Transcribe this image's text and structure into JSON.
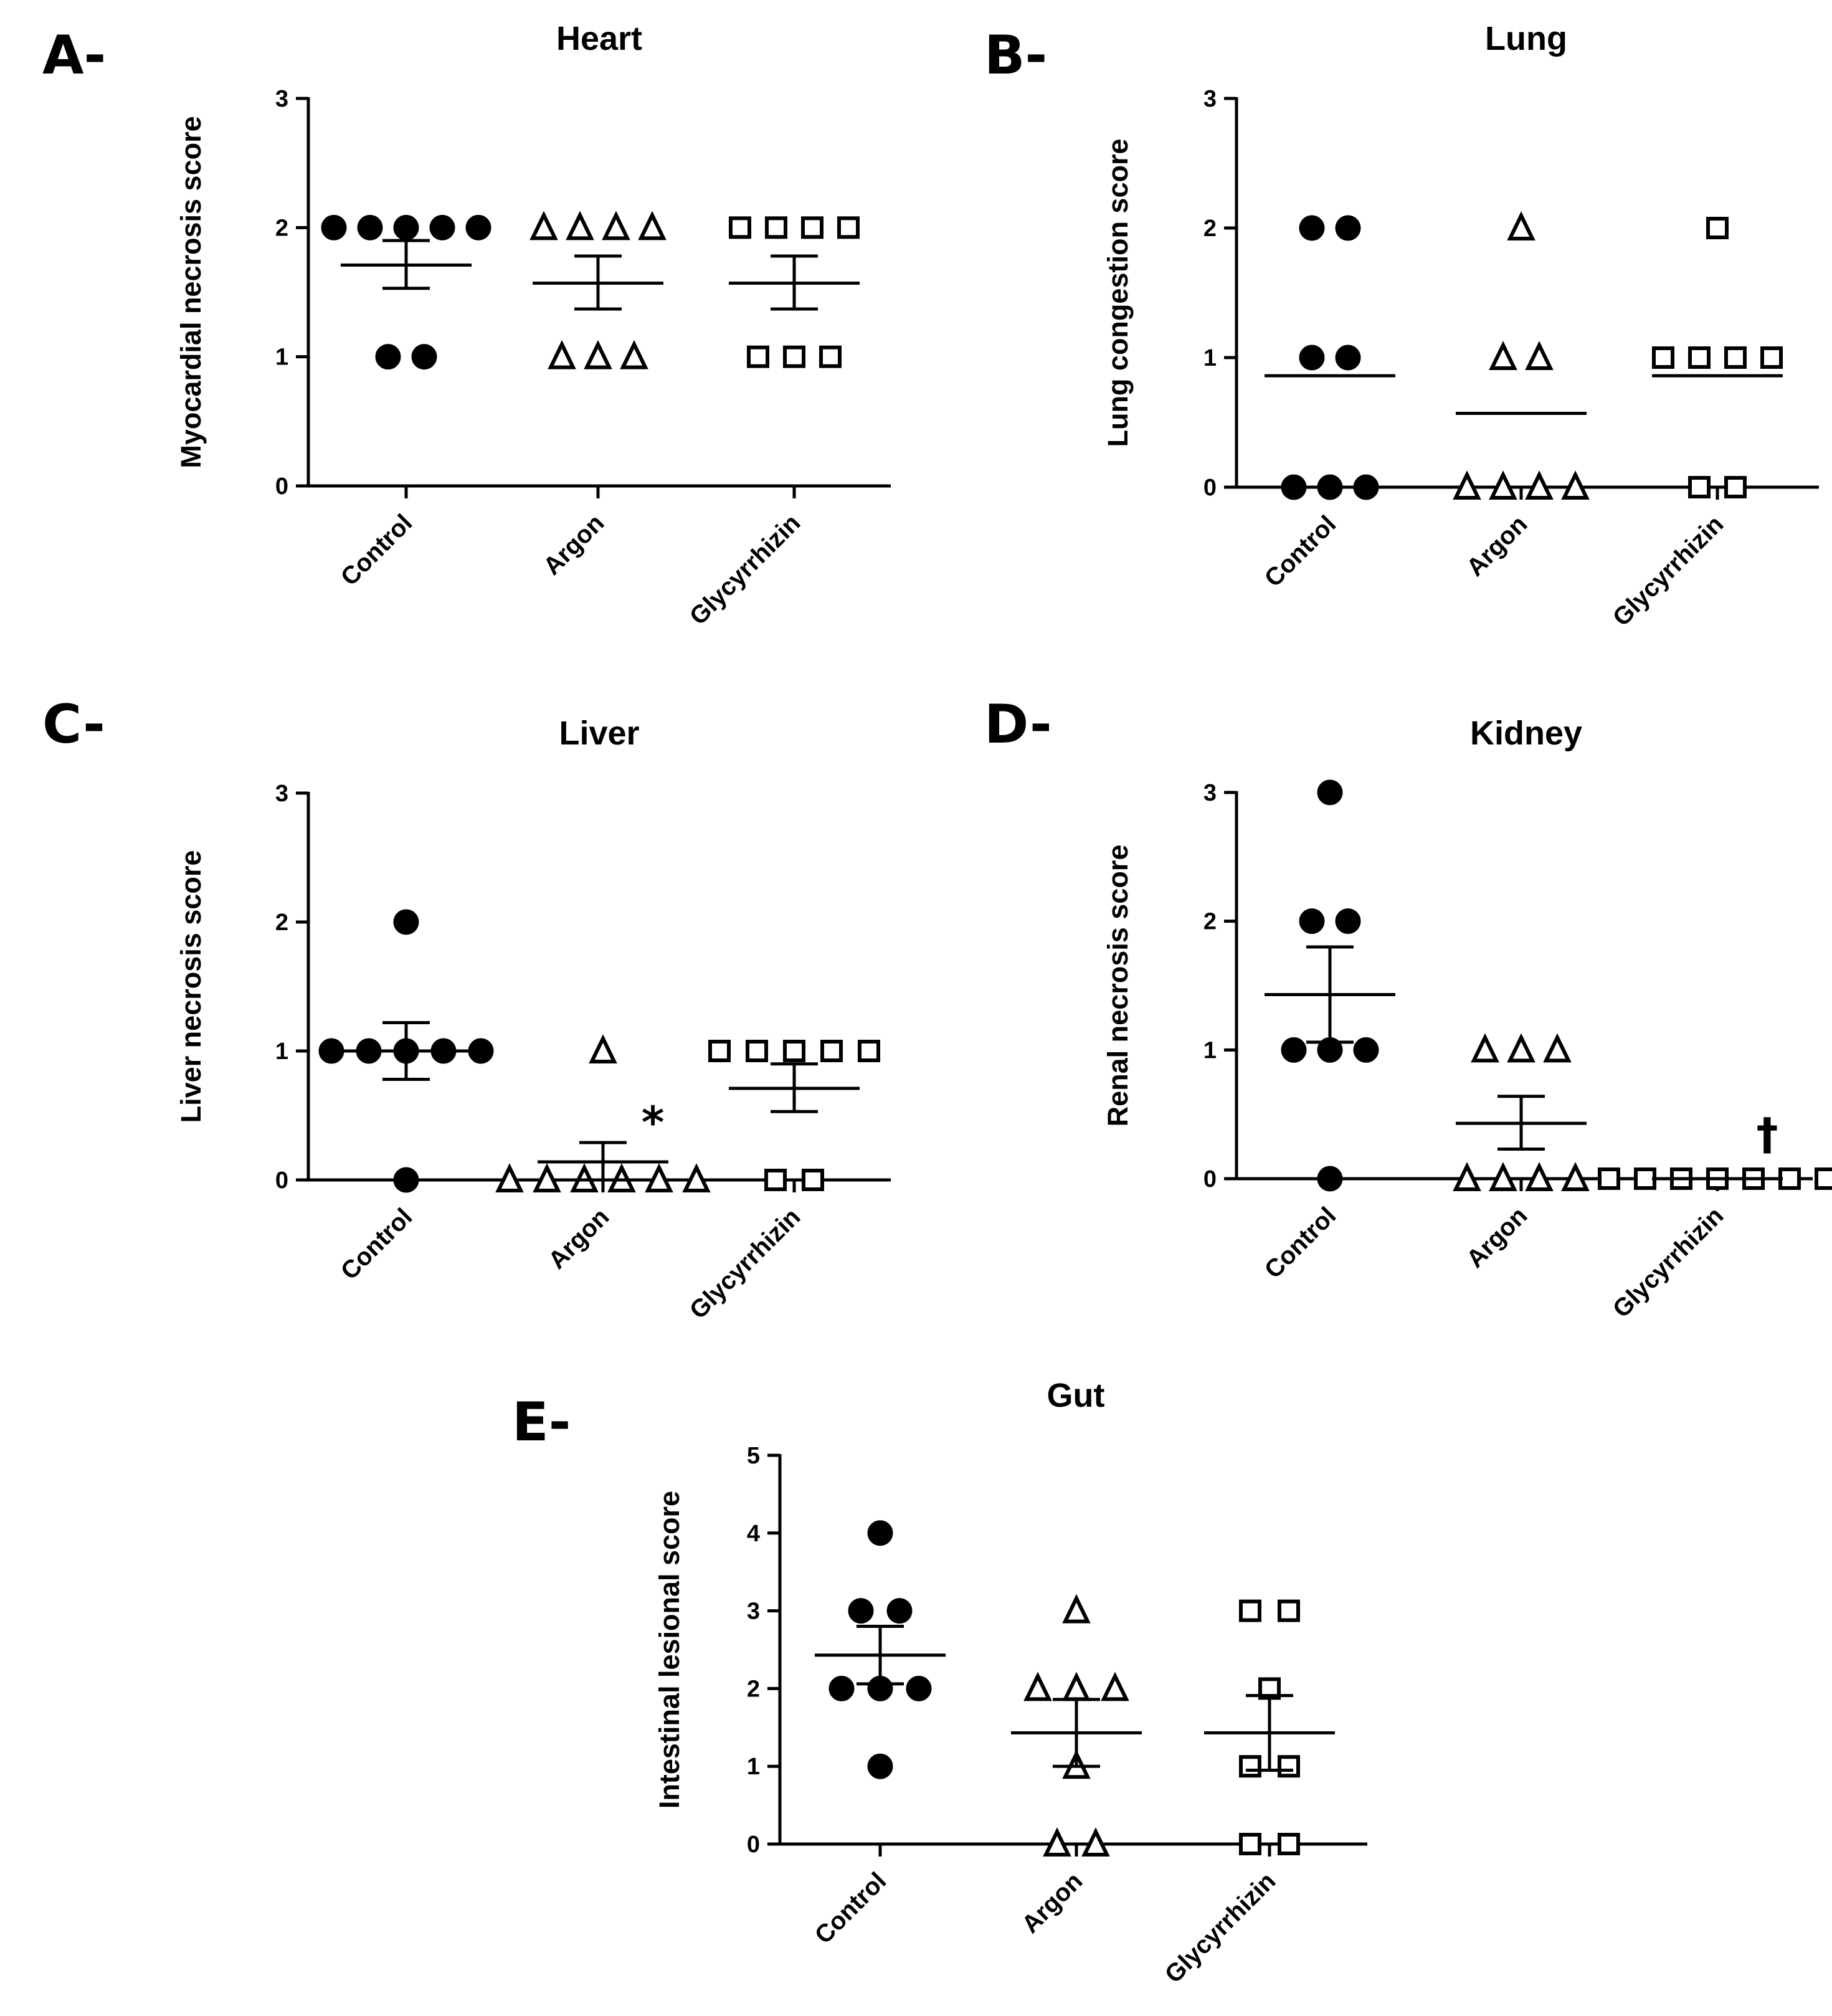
{
  "chart_data": [
    {
      "panel": "A-",
      "type": "scatter",
      "title": "Heart",
      "ylabel": "Myocardial necrosis score",
      "xlabel": "",
      "ylim": [
        0,
        3
      ],
      "yticks": [
        0,
        1,
        2,
        3
      ],
      "categories": [
        "Control",
        "Argon",
        "Glycyrrhizin"
      ],
      "series": [
        {
          "name": "Control",
          "marker": "circle",
          "values": [
            2,
            2,
            2,
            2,
            2,
            1,
            1
          ],
          "mean": 1.71,
          "sem_low": 1.53,
          "sem_high": 1.9
        },
        {
          "name": "Argon",
          "marker": "triangle",
          "values": [
            2,
            2,
            2,
            2,
            1,
            1,
            1
          ],
          "mean": 1.57,
          "sem_low": 1.37,
          "sem_high": 1.78
        },
        {
          "name": "Glycyrrhizin",
          "marker": "square",
          "values": [
            2,
            2,
            2,
            2,
            1,
            1,
            1
          ],
          "mean": 1.57,
          "sem_low": 1.37,
          "sem_high": 1.78
        }
      ],
      "annotations": []
    },
    {
      "panel": "B-",
      "type": "scatter",
      "title": "Lung",
      "ylabel": "Lung congestion score",
      "xlabel": "",
      "ylim": [
        0,
        3
      ],
      "yticks": [
        0,
        1,
        2,
        3
      ],
      "categories": [
        "Control",
        "Argon",
        "Glycyrrhizin"
      ],
      "series": [
        {
          "name": "Control",
          "marker": "circle",
          "values": [
            2,
            2,
            1,
            1,
            0,
            0,
            0
          ],
          "mean": 0.86,
          "sem_low": null,
          "sem_high": null
        },
        {
          "name": "Argon",
          "marker": "triangle",
          "values": [
            2,
            1,
            1,
            0,
            0,
            0,
            0
          ],
          "mean": 0.57,
          "sem_low": null,
          "sem_high": null
        },
        {
          "name": "Glycyrrhizin",
          "marker": "square",
          "values": [
            2,
            1,
            1,
            1,
            1,
            0,
            0
          ],
          "mean": 0.86,
          "sem_low": null,
          "sem_high": null
        }
      ],
      "annotations": []
    },
    {
      "panel": "C-",
      "type": "scatter",
      "title": "Liver",
      "ylabel": "Liver necrosis score",
      "xlabel": "",
      "ylim": [
        0,
        3
      ],
      "yticks": [
        0,
        1,
        2,
        3
      ],
      "categories": [
        "Control",
        "Argon",
        "Glycyrrhizin"
      ],
      "series": [
        {
          "name": "Control",
          "marker": "circle",
          "values": [
            2,
            1,
            1,
            1,
            1,
            1,
            0
          ],
          "mean": 1.0,
          "sem_low": 0.78,
          "sem_high": 1.22
        },
        {
          "name": "Argon",
          "marker": "triangle",
          "values": [
            1,
            0,
            0,
            0,
            0,
            0,
            0
          ],
          "mean": 0.14,
          "sem_low": 0.0,
          "sem_high": 0.29
        },
        {
          "name": "Glycyrrhizin",
          "marker": "square",
          "values": [
            1,
            1,
            1,
            1,
            1,
            0,
            0
          ],
          "mean": 0.71,
          "sem_low": 0.53,
          "sem_high": 0.9
        }
      ],
      "annotations": [
        {
          "text": "*",
          "category": "Argon",
          "y": 0.45
        }
      ]
    },
    {
      "panel": "D-",
      "type": "scatter",
      "title": "Kidney",
      "ylabel": "Renal necrosis score",
      "xlabel": "",
      "ylim": [
        0,
        3
      ],
      "yticks": [
        0,
        1,
        2,
        3
      ],
      "categories": [
        "Control",
        "Argon",
        "Glycyrrhizin"
      ],
      "series": [
        {
          "name": "Control",
          "marker": "circle",
          "values": [
            3,
            2,
            2,
            1,
            1,
            1,
            0
          ],
          "mean": 1.43,
          "sem_low": 1.06,
          "sem_high": 1.8
        },
        {
          "name": "Argon",
          "marker": "triangle",
          "values": [
            1,
            1,
            1,
            0,
            0,
            0,
            0
          ],
          "mean": 0.43,
          "sem_low": 0.23,
          "sem_high": 0.64
        },
        {
          "name": "Glycyrrhizin",
          "marker": "square",
          "values": [
            0,
            0,
            0,
            0,
            0,
            0,
            0
          ],
          "mean": 0.0,
          "sem_low": 0.0,
          "sem_high": 0.0
        }
      ],
      "annotations": [
        {
          "text": "†",
          "category": "Glycyrrhizin",
          "y": 0.35
        }
      ]
    },
    {
      "panel": "E-",
      "type": "scatter",
      "title": "Gut",
      "ylabel": "Intestinal lesional score",
      "xlabel": "",
      "ylim": [
        0,
        5
      ],
      "yticks": [
        0,
        1,
        2,
        3,
        4,
        5
      ],
      "categories": [
        "Control",
        "Argon",
        "Glycyrrhizin"
      ],
      "series": [
        {
          "name": "Control",
          "marker": "circle",
          "values": [
            4,
            3,
            3,
            2,
            2,
            2,
            1
          ],
          "mean": 2.43,
          "sem_low": 2.06,
          "sem_high": 2.8
        },
        {
          "name": "Argon",
          "marker": "triangle",
          "values": [
            3,
            2,
            2,
            2,
            1,
            0,
            0
          ],
          "mean": 1.43,
          "sem_low": 1.0,
          "sem_high": 1.86
        },
        {
          "name": "Glycyrrhizin",
          "marker": "square",
          "values": [
            3,
            3,
            2,
            1,
            1,
            0,
            0
          ],
          "mean": 1.43,
          "sem_low": 0.95,
          "sem_high": 1.91
        }
      ],
      "annotations": []
    }
  ]
}
